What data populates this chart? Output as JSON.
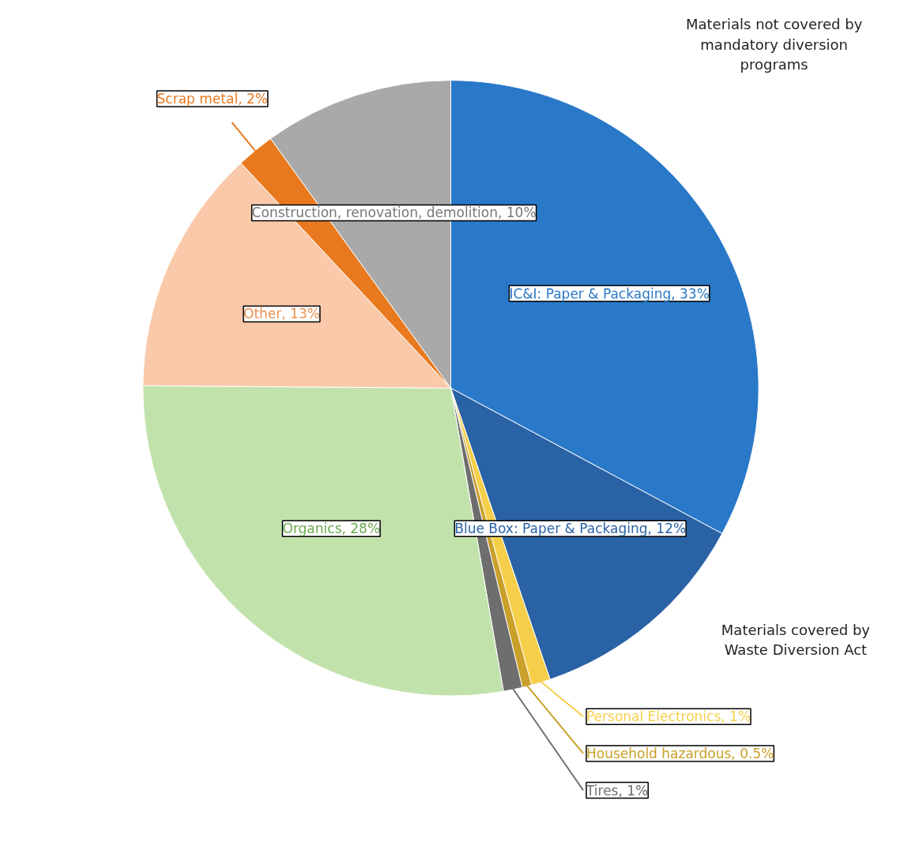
{
  "chart_data": {
    "type": "pie",
    "categories": [
      "IC&I: Paper & Packaging",
      "Blue Box: Paper & Packaging",
      "Personal Electronics",
      "Household hazardous",
      "Tires",
      "Organics",
      "Other",
      "Scrap metal",
      "Construction, renovation, demolition"
    ],
    "values": [
      33,
      12,
      1,
      0.5,
      1,
      28,
      13,
      2,
      10
    ],
    "value_labels": [
      "33%",
      "12%",
      "1%",
      "0.5%",
      "1%",
      "28%",
      "13%",
      "2%",
      "10%"
    ],
    "colors": [
      "#2a78c8",
      "#2a62a6",
      "#f6cf4a",
      "#c9a02a",
      "#6e6e6e",
      "#c2e2ac",
      "#f9c9a9",
      "#e8791f",
      "#a9a9a9"
    ],
    "annotations": [
      "Materials not covered by mandatory diversion programs",
      "Materials covered by Waste Diversion Act"
    ]
  }
}
